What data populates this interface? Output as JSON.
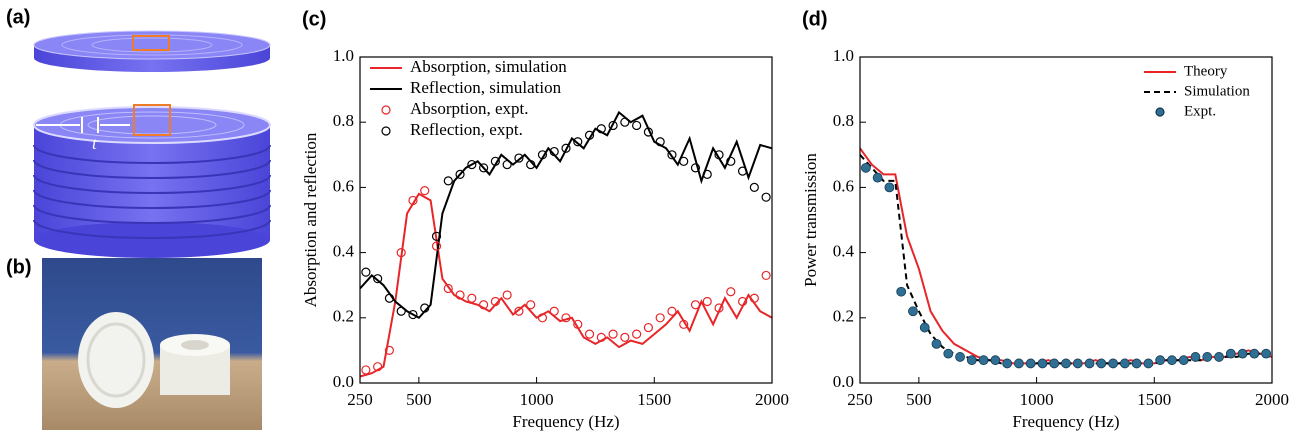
{
  "images": [
    {
      "label": "(a)",
      "annotation": "t"
    },
    {
      "label": "(b)"
    }
  ],
  "chart_data": [
    {
      "type": "line",
      "panel_label": "(c)",
      "x_label": "Frequency (Hz)",
      "y_label": "Absorption and reflection",
      "xlim": [
        250,
        2000
      ],
      "xticks": [
        250,
        500,
        1000,
        1500,
        2000
      ],
      "ylim": [
        0,
        1
      ],
      "yticks": [
        {
          "value": 0,
          "label": "0.0"
        },
        {
          "value": 0.2,
          "label": "0.2"
        },
        {
          "value": 0.4,
          "label": "0.4"
        },
        {
          "value": 0.6,
          "label": "0.6"
        },
        {
          "value": 0.8,
          "label": "0.8"
        },
        {
          "value": 1,
          "label": "1.0"
        }
      ],
      "legend": "upper-left",
      "series": [
        {
          "name": "Absorption, simulation",
          "color": "#e8262a",
          "mode": "line",
          "x": [
            250,
            300,
            350,
            400,
            450,
            500,
            550,
            600,
            650,
            700,
            750,
            800,
            850,
            900,
            950,
            1000,
            1050,
            1100,
            1150,
            1200,
            1250,
            1300,
            1350,
            1400,
            1450,
            1500,
            1550,
            1600,
            1650,
            1700,
            1750,
            1800,
            1850,
            1900,
            1950,
            2000
          ],
          "values": [
            0.02,
            0.03,
            0.05,
            0.25,
            0.52,
            0.58,
            0.56,
            0.32,
            0.27,
            0.25,
            0.24,
            0.22,
            0.26,
            0.21,
            0.24,
            0.2,
            0.22,
            0.19,
            0.2,
            0.14,
            0.12,
            0.14,
            0.11,
            0.13,
            0.12,
            0.15,
            0.18,
            0.22,
            0.16,
            0.25,
            0.18,
            0.26,
            0.2,
            0.27,
            0.22,
            0.2
          ]
        },
        {
          "name": "Reflection, simulation",
          "color": "#000000",
          "mode": "line",
          "x": [
            250,
            300,
            350,
            400,
            450,
            500,
            550,
            600,
            650,
            700,
            750,
            800,
            850,
            900,
            950,
            1000,
            1050,
            1100,
            1150,
            1200,
            1250,
            1300,
            1350,
            1400,
            1450,
            1500,
            1550,
            1600,
            1650,
            1700,
            1750,
            1800,
            1850,
            1900,
            1950,
            2000
          ],
          "values": [
            0.29,
            0.33,
            0.3,
            0.25,
            0.22,
            0.2,
            0.24,
            0.52,
            0.62,
            0.66,
            0.68,
            0.64,
            0.7,
            0.67,
            0.7,
            0.66,
            0.72,
            0.68,
            0.75,
            0.72,
            0.78,
            0.76,
            0.83,
            0.8,
            0.82,
            0.74,
            0.72,
            0.67,
            0.75,
            0.62,
            0.72,
            0.66,
            0.74,
            0.63,
            0.73,
            0.72
          ]
        },
        {
          "name": "Absorption, expt.",
          "color": "#e8262a",
          "mode": "markers",
          "x": [
            275,
            325,
            375,
            425,
            475,
            525,
            575,
            625,
            675,
            725,
            775,
            825,
            875,
            925,
            975,
            1025,
            1075,
            1125,
            1175,
            1225,
            1275,
            1325,
            1375,
            1425,
            1475,
            1525,
            1575,
            1625,
            1675,
            1725,
            1775,
            1825,
            1875,
            1925,
            1975
          ],
          "values": [
            0.04,
            0.05,
            0.1,
            0.4,
            0.56,
            0.59,
            0.42,
            0.29,
            0.27,
            0.26,
            0.24,
            0.25,
            0.27,
            0.22,
            0.24,
            0.2,
            0.22,
            0.2,
            0.18,
            0.15,
            0.14,
            0.15,
            0.14,
            0.15,
            0.17,
            0.2,
            0.22,
            0.18,
            0.24,
            0.25,
            0.23,
            0.28,
            0.25,
            0.26,
            0.33
          ]
        },
        {
          "name": "Reflection, expt.",
          "color": "#000000",
          "mode": "markers",
          "x": [
            275,
            325,
            375,
            425,
            475,
            525,
            575,
            625,
            675,
            725,
            775,
            825,
            875,
            925,
            975,
            1025,
            1075,
            1125,
            1175,
            1225,
            1275,
            1325,
            1375,
            1425,
            1475,
            1525,
            1575,
            1625,
            1675,
            1725,
            1775,
            1825,
            1875,
            1925,
            1975
          ],
          "values": [
            0.34,
            0.32,
            0.26,
            0.22,
            0.21,
            0.23,
            0.45,
            0.62,
            0.64,
            0.67,
            0.66,
            0.68,
            0.67,
            0.69,
            0.67,
            0.7,
            0.71,
            0.72,
            0.74,
            0.76,
            0.78,
            0.79,
            0.8,
            0.79,
            0.77,
            0.74,
            0.7,
            0.68,
            0.66,
            0.64,
            0.7,
            0.68,
            0.65,
            0.6,
            0.57
          ]
        }
      ]
    },
    {
      "type": "line",
      "panel_label": "(d)",
      "x_label": "Frequency (Hz)",
      "y_label": "Power transmission",
      "xlim": [
        250,
        2000
      ],
      "xticks": [
        250,
        500,
        1000,
        1500,
        2000
      ],
      "ylim": [
        0,
        1
      ],
      "yticks": [
        {
          "value": 0,
          "label": "0.0"
        },
        {
          "value": 0.2,
          "label": "0.2"
        },
        {
          "value": 0.4,
          "label": "0.4"
        },
        {
          "value": 0.6,
          "label": "0.6"
        },
        {
          "value": 0.8,
          "label": "0.8"
        },
        {
          "value": 1,
          "label": "1.0"
        }
      ],
      "legend": "upper-right",
      "series": [
        {
          "name": "Theory",
          "color": "#e8262a",
          "mode": "line",
          "x": [
            250,
            300,
            350,
            400,
            450,
            500,
            550,
            600,
            650,
            700,
            750,
            800,
            850,
            900,
            950,
            1000,
            1050,
            1100,
            1150,
            1200,
            1250,
            1300,
            1350,
            1400,
            1450,
            1500,
            1550,
            1600,
            1650,
            1700,
            1750,
            1800,
            1850,
            1900,
            1950,
            2000
          ],
          "values": [
            0.72,
            0.67,
            0.64,
            0.64,
            0.45,
            0.35,
            0.22,
            0.16,
            0.12,
            0.1,
            0.08,
            0.07,
            0.07,
            0.06,
            0.06,
            0.06,
            0.07,
            0.06,
            0.06,
            0.06,
            0.07,
            0.06,
            0.06,
            0.07,
            0.06,
            0.06,
            0.07,
            0.07,
            0.08,
            0.07,
            0.08,
            0.08,
            0.09,
            0.1,
            0.09,
            0.08
          ]
        },
        {
          "name": "Simulation",
          "color": "#000000",
          "mode": "dashed",
          "x": [
            250,
            300,
            350,
            400,
            450,
            500,
            550,
            600,
            650,
            700,
            750,
            800,
            850,
            900,
            950,
            1000,
            1050,
            1100,
            1150,
            1200,
            1250,
            1300,
            1350,
            1400,
            1450,
            1500,
            1550,
            1600,
            1650,
            1700,
            1750,
            1800,
            1850,
            1900,
            1950,
            2000
          ],
          "values": [
            0.7,
            0.66,
            0.62,
            0.62,
            0.3,
            0.22,
            0.15,
            0.11,
            0.09,
            0.08,
            0.07,
            0.07,
            0.06,
            0.06,
            0.06,
            0.06,
            0.06,
            0.06,
            0.06,
            0.06,
            0.06,
            0.06,
            0.06,
            0.06,
            0.06,
            0.06,
            0.07,
            0.07,
            0.07,
            0.07,
            0.08,
            0.08,
            0.08,
            0.09,
            0.09,
            0.08
          ]
        },
        {
          "name": "Expt.",
          "color": "#2e6f93",
          "mode": "dots",
          "x": [
            275,
            325,
            375,
            425,
            475,
            525,
            575,
            625,
            675,
            725,
            775,
            825,
            875,
            925,
            975,
            1025,
            1075,
            1125,
            1175,
            1225,
            1275,
            1325,
            1375,
            1425,
            1475,
            1525,
            1575,
            1625,
            1675,
            1725,
            1775,
            1825,
            1875,
            1925,
            1975
          ],
          "values": [
            0.66,
            0.63,
            0.6,
            0.28,
            0.22,
            0.17,
            0.12,
            0.09,
            0.08,
            0.07,
            0.07,
            0.07,
            0.06,
            0.06,
            0.06,
            0.06,
            0.06,
            0.06,
            0.06,
            0.06,
            0.06,
            0.06,
            0.06,
            0.06,
            0.06,
            0.07,
            0.07,
            0.07,
            0.08,
            0.08,
            0.08,
            0.09,
            0.09,
            0.09,
            0.09
          ]
        }
      ]
    }
  ]
}
